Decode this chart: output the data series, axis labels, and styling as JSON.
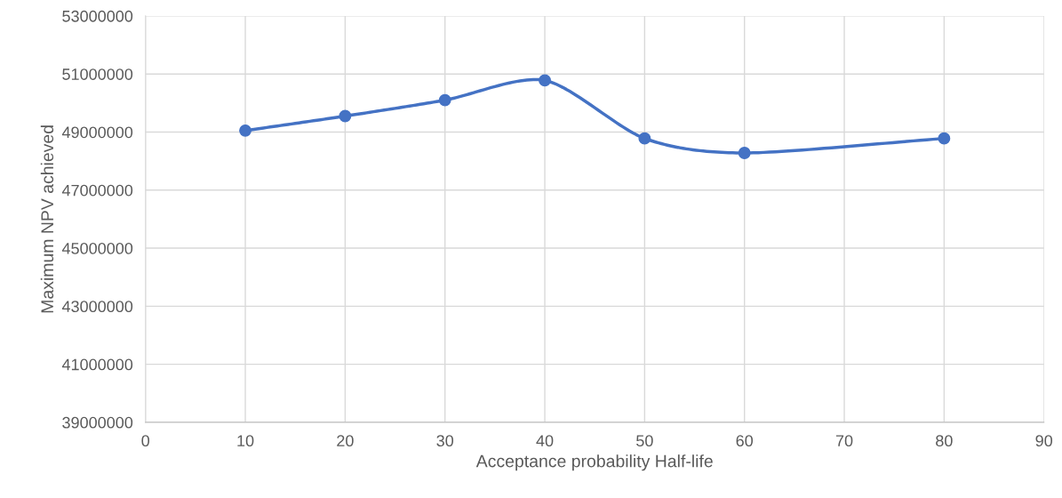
{
  "chart_data": {
    "type": "line",
    "xlabel": "Acceptance probability Half-life",
    "ylabel": "Maximum NPV achieved",
    "x": [
      10,
      20,
      30,
      40,
      50,
      60,
      80
    ],
    "series": [
      {
        "color": "#4472c4",
        "values": [
          49050000,
          49550000,
          50100000,
          50780000,
          48780000,
          48280000,
          48780000
        ]
      }
    ],
    "xlim": [
      0,
      90
    ],
    "xticks": [
      0,
      10,
      20,
      30,
      40,
      50,
      60,
      70,
      80,
      90
    ],
    "ylim": [
      39000000,
      53000000
    ],
    "yticks": [
      39000000,
      41000000,
      43000000,
      45000000,
      47000000,
      49000000,
      51000000,
      53000000
    ],
    "grid": true,
    "marker": "circle",
    "line_style": "solid"
  }
}
